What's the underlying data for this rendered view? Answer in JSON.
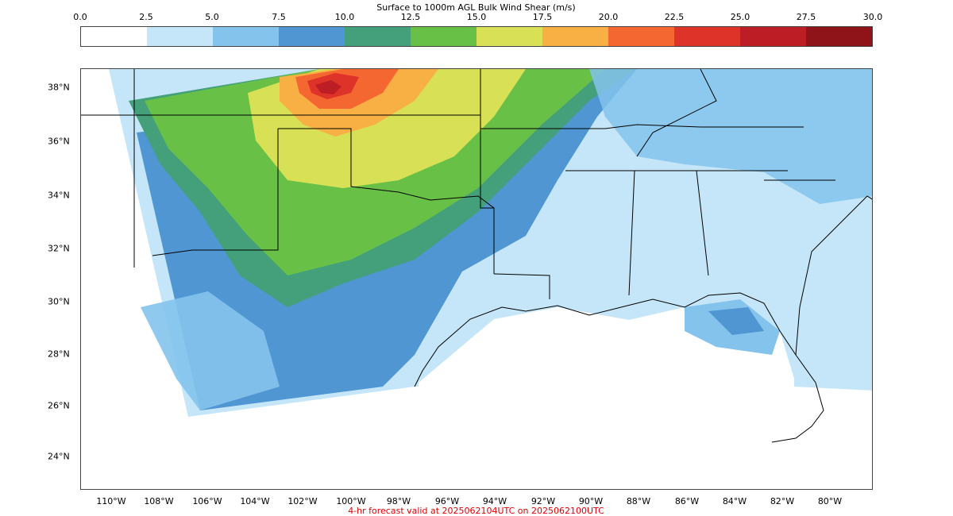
{
  "colorbar": {
    "title": "Surface to 1000m AGL Bulk Wind Shear (m/s)",
    "ticks": [
      "0.0",
      "2.5",
      "5.0",
      "7.5",
      "10.0",
      "12.5",
      "15.0",
      "17.5",
      "20.0",
      "22.5",
      "25.0",
      "27.5",
      "30.0"
    ],
    "colors": [
      "#ffffff",
      "#c4e6f8",
      "#84c3ec",
      "#4f96d2",
      "#44a07a",
      "#68c047",
      "#d8e055",
      "#f8b045",
      "#f46730",
      "#dd3328",
      "#bd1d25",
      "#8f1419"
    ]
  },
  "axes": {
    "lat_labels": [
      "38°N",
      "36°N",
      "34°N",
      "32°N",
      "30°N",
      "28°N",
      "26°N",
      "24°N"
    ],
    "lon_labels": [
      "110°W",
      "108°W",
      "106°W",
      "104°W",
      "102°W",
      "100°W",
      "98°W",
      "96°W",
      "94°W",
      "92°W",
      "90°W",
      "88°W",
      "86°W",
      "84°W",
      "82°W",
      "80°W"
    ]
  },
  "map": {
    "region": "Southern United States and Gulf of Mexico",
    "dominant_levels": [
      "7.5",
      "10.0",
      "12.5",
      "15.0",
      "17.5",
      "20.0",
      "22.5",
      "25.0"
    ]
  },
  "caption": "4-hr forecast valid at 2025062104UTC on 2025062100UTC"
}
